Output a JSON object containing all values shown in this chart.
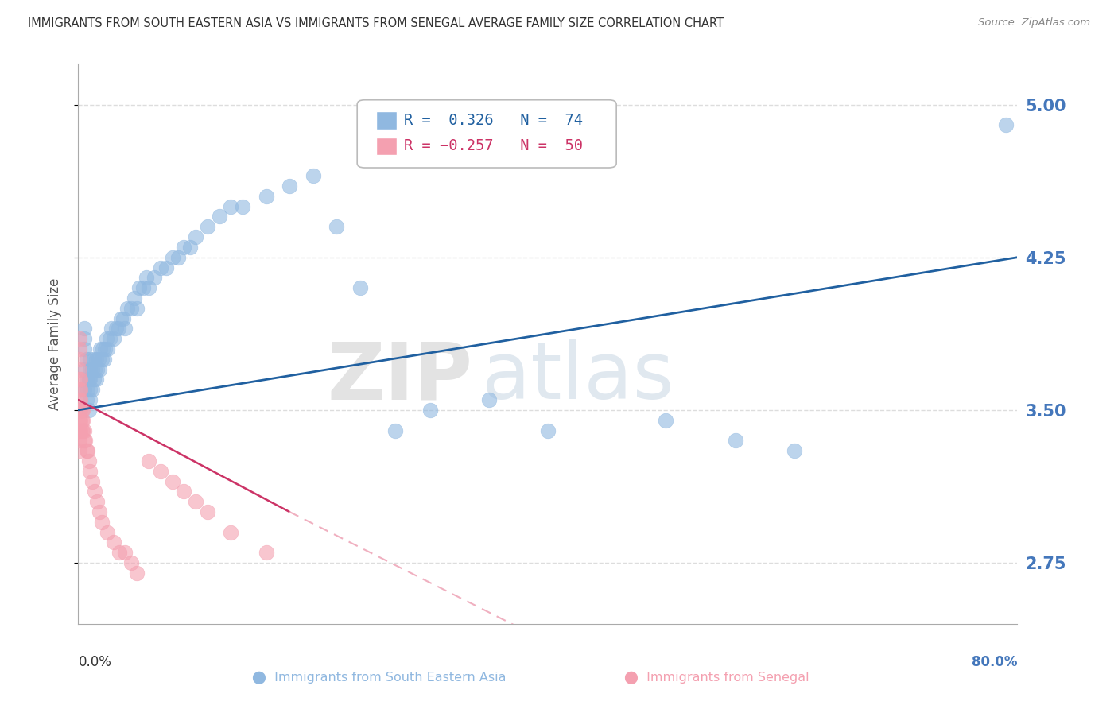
{
  "title": "IMMIGRANTS FROM SOUTH EASTERN ASIA VS IMMIGRANTS FROM SENEGAL AVERAGE FAMILY SIZE CORRELATION CHART",
  "source": "Source: ZipAtlas.com",
  "ylabel": "Average Family Size",
  "xlim": [
    0,
    0.8
  ],
  "ylim": [
    2.45,
    5.2
  ],
  "yticks": [
    2.75,
    3.5,
    4.25,
    5.0
  ],
  "ytick_labels": [
    "2.75",
    "3.50",
    "4.25",
    "5.00"
  ],
  "xtick_left_label": "0.0%",
  "xtick_right_label": "80.0%",
  "blue_R": 0.326,
  "blue_N": 74,
  "pink_R": -0.257,
  "pink_N": 50,
  "blue_color": "#90B8E0",
  "pink_color": "#F4A0B0",
  "blue_line_color": "#2060A0",
  "pink_line_color": "#CC3366",
  "pink_dash_color": "#F0B0C0",
  "watermark_zip": "ZIP",
  "watermark_atlas": "atlas",
  "legend_blue_text": "R =  0.326   N =  74",
  "legend_pink_text": "R = −0.257   N =  50",
  "blue_scatter_x": [
    0.005,
    0.005,
    0.005,
    0.005,
    0.005,
    0.007,
    0.007,
    0.007,
    0.008,
    0.009,
    0.009,
    0.01,
    0.01,
    0.01,
    0.01,
    0.01,
    0.012,
    0.012,
    0.013,
    0.013,
    0.014,
    0.015,
    0.015,
    0.016,
    0.017,
    0.018,
    0.019,
    0.02,
    0.021,
    0.022,
    0.023,
    0.024,
    0.025,
    0.027,
    0.028,
    0.03,
    0.032,
    0.034,
    0.036,
    0.038,
    0.04,
    0.042,
    0.045,
    0.048,
    0.05,
    0.052,
    0.055,
    0.058,
    0.06,
    0.065,
    0.07,
    0.075,
    0.08,
    0.085,
    0.09,
    0.095,
    0.1,
    0.11,
    0.12,
    0.13,
    0.14,
    0.16,
    0.18,
    0.2,
    0.22,
    0.24,
    0.27,
    0.3,
    0.35,
    0.4,
    0.5,
    0.56,
    0.61,
    0.79
  ],
  "blue_scatter_y": [
    3.6,
    3.7,
    3.8,
    3.85,
    3.9,
    3.55,
    3.65,
    3.75,
    3.6,
    3.5,
    3.65,
    3.55,
    3.6,
    3.65,
    3.7,
    3.75,
    3.6,
    3.7,
    3.65,
    3.75,
    3.7,
    3.65,
    3.75,
    3.7,
    3.75,
    3.7,
    3.8,
    3.75,
    3.8,
    3.75,
    3.8,
    3.85,
    3.8,
    3.85,
    3.9,
    3.85,
    3.9,
    3.9,
    3.95,
    3.95,
    3.9,
    4.0,
    4.0,
    4.05,
    4.0,
    4.1,
    4.1,
    4.15,
    4.1,
    4.15,
    4.2,
    4.2,
    4.25,
    4.25,
    4.3,
    4.3,
    4.35,
    4.4,
    4.45,
    4.5,
    4.5,
    4.55,
    4.6,
    4.65,
    4.4,
    4.1,
    3.4,
    3.5,
    3.55,
    3.4,
    3.45,
    3.35,
    3.3,
    4.9
  ],
  "pink_scatter_x": [
    0.001,
    0.001,
    0.001,
    0.001,
    0.001,
    0.001,
    0.001,
    0.001,
    0.001,
    0.001,
    0.001,
    0.001,
    0.002,
    0.002,
    0.002,
    0.002,
    0.002,
    0.002,
    0.003,
    0.003,
    0.003,
    0.004,
    0.004,
    0.004,
    0.005,
    0.005,
    0.006,
    0.007,
    0.008,
    0.009,
    0.01,
    0.012,
    0.014,
    0.016,
    0.018,
    0.02,
    0.025,
    0.03,
    0.035,
    0.04,
    0.045,
    0.05,
    0.06,
    0.07,
    0.08,
    0.09,
    0.1,
    0.11,
    0.13,
    0.16
  ],
  "pink_scatter_y": [
    3.3,
    3.35,
    3.4,
    3.45,
    3.5,
    3.55,
    3.6,
    3.65,
    3.7,
    3.75,
    3.8,
    3.85,
    3.4,
    3.45,
    3.5,
    3.55,
    3.6,
    3.65,
    3.4,
    3.45,
    3.5,
    3.4,
    3.45,
    3.5,
    3.35,
    3.4,
    3.35,
    3.3,
    3.3,
    3.25,
    3.2,
    3.15,
    3.1,
    3.05,
    3.0,
    2.95,
    2.9,
    2.85,
    2.8,
    2.8,
    2.75,
    2.7,
    3.25,
    3.2,
    3.15,
    3.1,
    3.05,
    3.0,
    2.9,
    2.8
  ],
  "background_color": "#FFFFFF",
  "grid_color": "#DDDDDD",
  "axis_color": "#AAAAAA",
  "tick_label_color_right": "#4477BB",
  "title_color": "#333333",
  "source_color": "#888888",
  "figsize": [
    14.06,
    8.92
  ],
  "dpi": 100
}
